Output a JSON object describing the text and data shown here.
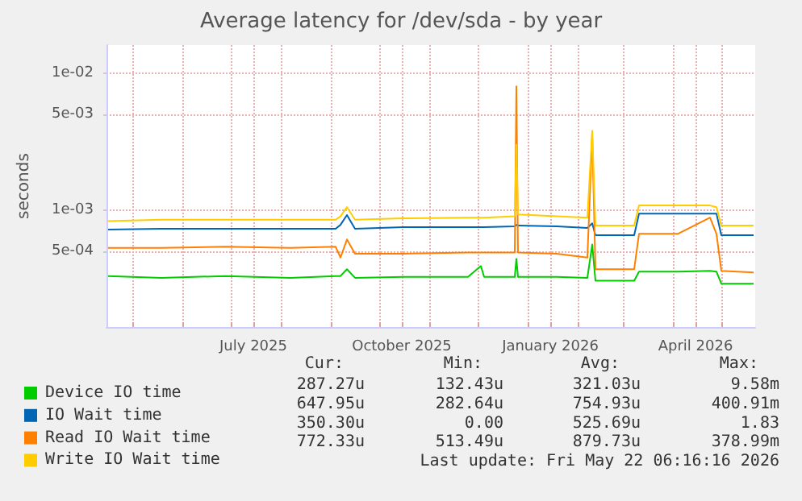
{
  "chart_data": {
    "type": "line",
    "title": "Average latency for /dev/sda - by year",
    "ylabel": "seconds",
    "x": [
      "2025-04-16",
      "2025-05-19",
      "2025-06-28",
      "2025-08-07",
      "2025-09-04",
      "2025-09-07",
      "2025-09-11",
      "2025-09-16",
      "2025-10-16",
      "2025-11-25",
      "2025-12-03",
      "2025-12-05",
      "2025-12-24",
      "2025-12-25",
      "2025-12-26",
      "2026-01-19",
      "2026-02-07",
      "2026-02-10",
      "2026-02-12",
      "2026-03-08",
      "2026-03-11",
      "2026-04-04",
      "2026-04-24",
      "2026-04-28",
      "2026-05-01",
      "2026-05-21"
    ],
    "series": [
      {
        "name": "Device IO time",
        "color": "#00cc00",
        "values": [
          0.00033,
          0.00032,
          0.00033,
          0.00032,
          0.00033,
          0.00033,
          0.00037,
          0.00032,
          0.000325,
          0.000325,
          0.00039,
          0.000325,
          0.000325,
          0.00044,
          0.000325,
          0.000325,
          0.00032,
          0.00056,
          0.000305,
          0.000305,
          0.000355,
          0.000355,
          0.00036,
          0.000355,
          0.00029,
          0.00029
        ]
      },
      {
        "name": "IO Wait time",
        "color": "#0066b3",
        "values": [
          0.00072,
          0.00073,
          0.00073,
          0.00073,
          0.00073,
          0.00078,
          0.00092,
          0.00073,
          0.00075,
          0.00075,
          0.00075,
          0.00075,
          0.00076,
          0.00078,
          0.00077,
          0.00076,
          0.00074,
          0.0008,
          0.000655,
          0.000655,
          0.00094,
          0.00094,
          0.00094,
          0.00094,
          0.000655,
          0.000655
        ]
      },
      {
        "name": "Read IO Wait time",
        "color": "#ff8000",
        "values": [
          0.00053,
          0.00053,
          0.00054,
          0.00053,
          0.00054,
          0.00045,
          0.00061,
          0.00048,
          0.00048,
          0.00049,
          0.00049,
          0.00049,
          0.00049,
          0.008,
          0.00049,
          0.00048,
          0.00045,
          0.0035,
          0.00037,
          0.00037,
          0.00067,
          0.00067,
          0.00088,
          0.00067,
          0.00036,
          0.00035
        ]
      },
      {
        "name": "Write IO Wait time",
        "color": "#ffcc00",
        "values": [
          0.00083,
          0.00085,
          0.00085,
          0.00085,
          0.00085,
          0.0009,
          0.00105,
          0.00085,
          0.00087,
          0.00088,
          0.00088,
          0.00088,
          0.0009,
          0.003,
          0.00093,
          0.0009,
          0.00088,
          0.0038,
          0.00077,
          0.00077,
          0.00108,
          0.00108,
          0.00108,
          0.00105,
          0.00077,
          0.00077
        ]
      }
    ],
    "log": "y",
    "ylim": [
      0.00014,
      0.016
    ],
    "yticks": [
      {
        "value": 0.0005,
        "label": "5e-04"
      },
      {
        "value": 0.001,
        "label": "1e-03"
      },
      {
        "value": 0.005,
        "label": "5e-03"
      },
      {
        "value": 0.01,
        "label": "1e-02"
      }
    ],
    "xlim": [
      "2025-04-15",
      "2026-05-22"
    ],
    "xticks": [
      {
        "value": "2025-05-01",
        "label": null
      },
      {
        "value": "2025-06-01",
        "label": null
      },
      {
        "value": "2025-07-01",
        "label": null
      },
      {
        "value": "2025-07-15",
        "label": "July 2025"
      },
      {
        "value": "2025-08-01",
        "label": null
      },
      {
        "value": "2025-09-01",
        "label": null
      },
      {
        "value": "2025-10-01",
        "label": null
      },
      {
        "value": "2025-10-15",
        "label": "October 2025"
      },
      {
        "value": "2025-11-01",
        "label": null
      },
      {
        "value": "2025-12-01",
        "label": null
      },
      {
        "value": "2026-01-01",
        "label": null
      },
      {
        "value": "2026-01-15",
        "label": "January 2026"
      },
      {
        "value": "2026-02-01",
        "label": null
      },
      {
        "value": "2026-03-01",
        "label": null
      },
      {
        "value": "2026-04-01",
        "label": null
      },
      {
        "value": "2026-04-15",
        "label": "April 2026"
      },
      {
        "value": "2026-05-01",
        "label": null
      }
    ],
    "grid": true,
    "legend": "bottom left",
    "marker": "none",
    "line_style": "solid",
    "annotations": [
      "Cur:",
      "Min:",
      "Avg:",
      "Max:",
      "287.27u",
      "132.43u",
      "321.03u",
      "9.58m",
      "647.95u",
      "282.64u",
      "754.93u",
      "400.91m",
      "350.30u",
      "0.00",
      "525.69u",
      "1.83",
      "772.33u",
      "513.49u",
      "879.73u",
      "378.99m",
      "Last update: Fri May 22 06:16:16 2026"
    ]
  }
}
